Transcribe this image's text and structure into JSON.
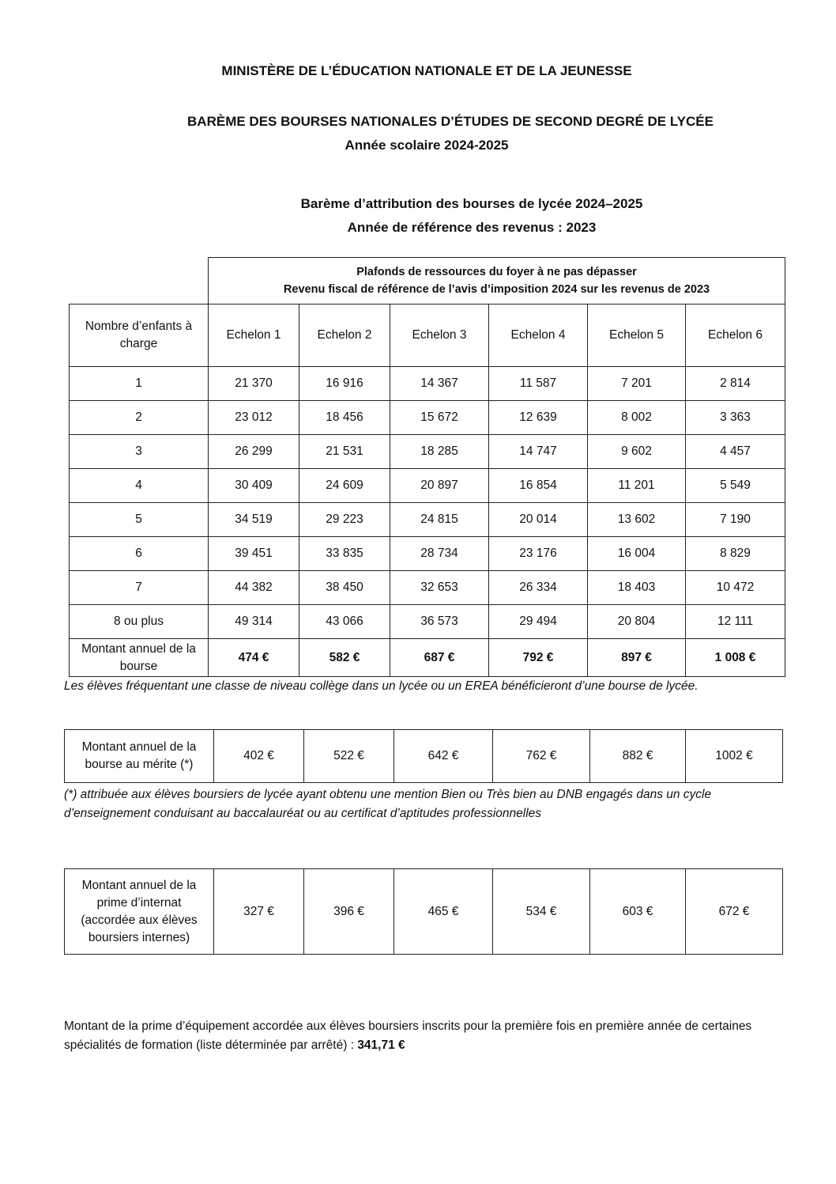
{
  "header": {
    "ministry": "MINISTÈRE DE L’ÉDUCATION NATIONALE ET DE LA JEUNESSE",
    "title": "BARÈME DES BOURSES NATIONALES D’ÉTUDES DE SECOND DEGRÉ DE LYCÉE",
    "school_year": "Année scolaire 2024-2025",
    "subtitle1": "Barème d’attribution des bourses de lycée 2024–2025",
    "subtitle2": "Année de référence des revenus : 2023"
  },
  "main_table": {
    "group_header_line1": "Plafonds de ressources du foyer à ne pas dépasser",
    "group_header_line2": "Revenu fiscal de référence de l’avis d’imposition 2024 sur les revenus de 2023",
    "row_header": "Nombre d’enfants à charge",
    "columns": [
      "Echelon 1",
      "Echelon 2",
      "Echelon 3",
      "Echelon 4",
      "Echelon 5",
      "Echelon 6"
    ],
    "rows": [
      {
        "label": "1",
        "values": [
          "21 370",
          "16 916",
          "14 367",
          "11 587",
          "7 201",
          "2 814"
        ]
      },
      {
        "label": "2",
        "values": [
          "23 012",
          "18 456",
          "15 672",
          "12 639",
          "8 002",
          "3 363"
        ]
      },
      {
        "label": "3",
        "values": [
          "26 299",
          "21 531",
          "18 285",
          "14 747",
          "9 602",
          "4 457"
        ]
      },
      {
        "label": "4",
        "values": [
          "30 409",
          "24 609",
          "20 897",
          "16 854",
          "11 201",
          "5 549"
        ]
      },
      {
        "label": "5",
        "values": [
          "34 519",
          "29 223",
          "24 815",
          "20 014",
          "13 602",
          "7 190"
        ]
      },
      {
        "label": "6",
        "values": [
          "39 451",
          "33 835",
          "28 734",
          "23 176",
          "16 004",
          "8 829"
        ]
      },
      {
        "label": "7",
        "values": [
          "44 382",
          "38 450",
          "32 653",
          "26 334",
          "18 403",
          "10 472"
        ]
      },
      {
        "label": "8 ou plus",
        "values": [
          "49 314",
          "43 066",
          "36 573",
          "29 494",
          "20 804",
          "12 111"
        ]
      }
    ],
    "amount_row": {
      "label": "Montant annuel de la bourse",
      "values": [
        "474 €",
        "582 €",
        "687 €",
        "792 €",
        "897 €",
        "1 008 €"
      ]
    },
    "note": "Les élèves fréquentant une classe de niveau collège dans un lycée ou un EREA bénéficieront d’une bourse de lycée."
  },
  "merit_table": {
    "label": "Montant annuel de la bourse au mérite (*)",
    "values": [
      "402 €",
      "522 €",
      "642 €",
      "762 €",
      "882 €",
      "1002 €"
    ],
    "note": " (*) attribuée aux élèves boursiers de lycée ayant obtenu une mention Bien ou Très bien au DNB engagés dans un cycle d’enseignement conduisant au baccalauréat ou au certificat d’aptitudes professionnelles"
  },
  "boarding_table": {
    "label": "Montant annuel de la prime d’internat (accordée aux élèves boursiers internes)",
    "values": [
      "327 €",
      "396 €",
      "465 €",
      "534 €",
      "603 €",
      "672 €"
    ]
  },
  "equipment": {
    "text": "Montant de la prime d’équipement accordée aux élèves boursiers inscrits pour la première fois en première année de certaines spécialités de formation (liste déterminée par arrêté) :  ",
    "amount": "341,71 €"
  }
}
